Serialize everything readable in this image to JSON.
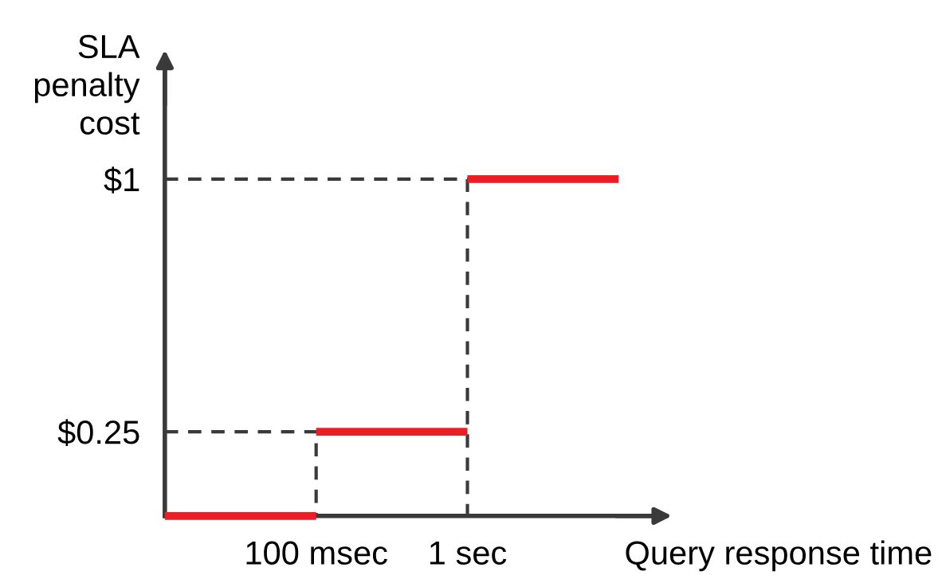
{
  "chart_data": {
    "type": "step",
    "xlabel": "Query response time",
    "ylabel": "SLA\npenalty\ncost",
    "categories": [
      null,
      "100 msec",
      "1 sec",
      null
    ],
    "series": [
      {
        "color": "#ee1c25",
        "values": [
          0,
          0.25,
          1,
          1
        ]
      }
    ],
    "ylim": [
      0,
      1.35
    ],
    "yticks": [
      {
        "value": 0.25,
        "label": "$0.25"
      },
      {
        "value": 1,
        "label": "$1"
      }
    ],
    "ref_lines": [
      {
        "axis": "y",
        "value": 0.25,
        "color": "#3a3a3a",
        "line_style": "dashed"
      },
      {
        "axis": "y",
        "value": 1,
        "color": "#3a3a3a",
        "line_style": "dashed"
      }
    ],
    "grid": false,
    "legend": false
  }
}
